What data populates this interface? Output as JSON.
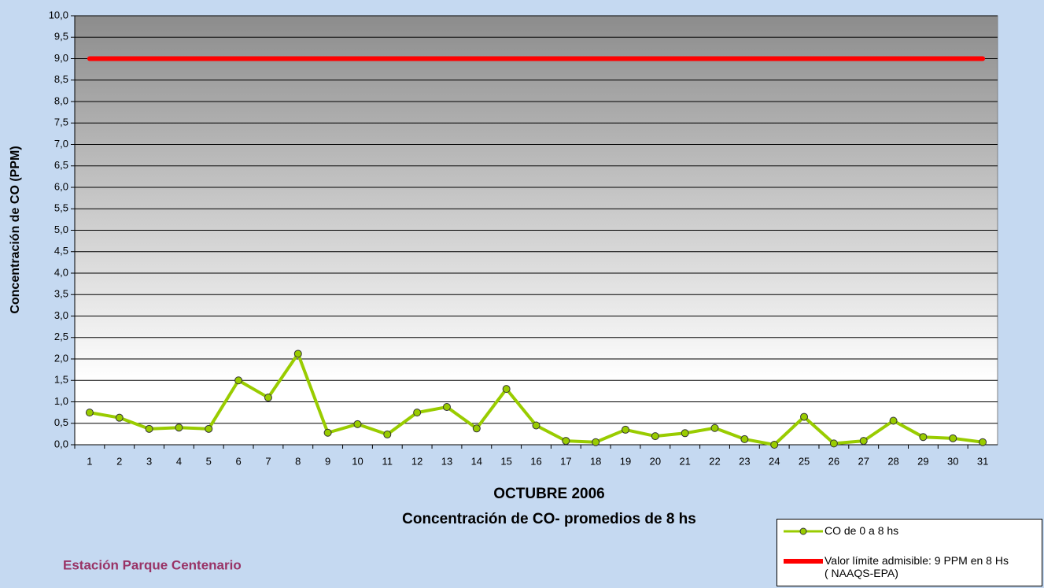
{
  "chart_data": {
    "type": "line",
    "xlabel": "OCTUBRE 2006",
    "subtitle": "Concentración de CO- promedios de 8 hs",
    "ylabel": "Concentración de CO (PPM)",
    "footer": "Estación Parque Centenario",
    "categories": [
      "1",
      "2",
      "3",
      "4",
      "5",
      "6",
      "7",
      "8",
      "9",
      "10",
      "11",
      "12",
      "13",
      "14",
      "15",
      "16",
      "17",
      "18",
      "19",
      "20",
      "21",
      "22",
      "23",
      "24",
      "25",
      "26",
      "27",
      "28",
      "29",
      "30",
      "31"
    ],
    "series": [
      {
        "name": "CO de 0 a 8 hs",
        "color": "#99cc00",
        "values": [
          0.75,
          0.63,
          0.37,
          0.4,
          0.37,
          1.5,
          1.1,
          2.12,
          0.28,
          0.48,
          0.24,
          0.75,
          0.88,
          0.38,
          1.3,
          0.45,
          0.09,
          0.06,
          0.35,
          0.2,
          0.27,
          0.39,
          0.13,
          0.0,
          0.65,
          0.03,
          0.09,
          0.56,
          0.18,
          0.15,
          0.06
        ]
      },
      {
        "name": "Valor límite admisible: 9 PPM en 8 Hs ( NAAQS-EPA)",
        "color": "#ff0000",
        "values": [
          9,
          9,
          9,
          9,
          9,
          9,
          9,
          9,
          9,
          9,
          9,
          9,
          9,
          9,
          9,
          9,
          9,
          9,
          9,
          9,
          9,
          9,
          9,
          9,
          9,
          9,
          9,
          9,
          9,
          9,
          9
        ]
      }
    ],
    "ylim": [
      0,
      10
    ],
    "yticks": [
      {
        "value": 0,
        "label": "0,0"
      },
      {
        "value": 0.5,
        "label": "0,5"
      },
      {
        "value": 1,
        "label": "1,0"
      },
      {
        "value": 1.5,
        "label": "1,5"
      },
      {
        "value": 2,
        "label": "2,0"
      },
      {
        "value": 2.5,
        "label": "2,5"
      },
      {
        "value": 3,
        "label": "3,0"
      },
      {
        "value": 3.5,
        "label": "3,5"
      },
      {
        "value": 4,
        "label": "4,0"
      },
      {
        "value": 4.5,
        "label": "4,5"
      },
      {
        "value": 5,
        "label": "5,0"
      },
      {
        "value": 5.5,
        "label": "5,5"
      },
      {
        "value": 6,
        "label": "6,0"
      },
      {
        "value": 6.5,
        "label": "6,5"
      },
      {
        "value": 7,
        "label": "7,0"
      },
      {
        "value": 7.5,
        "label": "7,5"
      },
      {
        "value": 8,
        "label": "8,0"
      },
      {
        "value": 8.5,
        "label": "8,5"
      },
      {
        "value": 9,
        "label": "9,0"
      },
      {
        "value": 9.5,
        "label": "9,5"
      },
      {
        "value": 10,
        "label": "10,0"
      }
    ],
    "grid": true
  }
}
